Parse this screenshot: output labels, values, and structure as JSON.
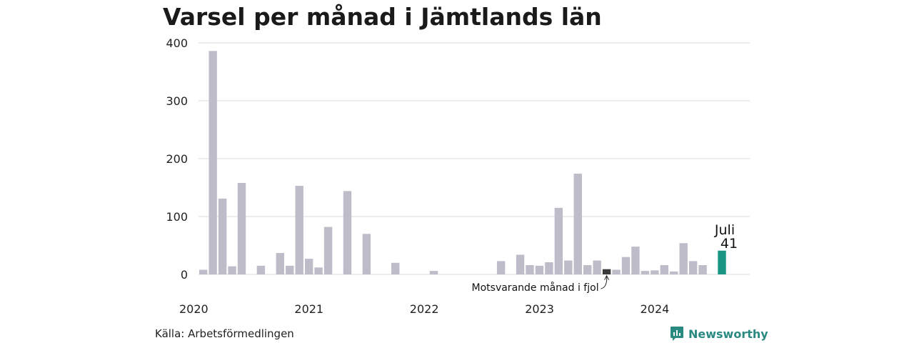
{
  "title": "Varsel per månad i Jämtlands län",
  "source": "Källa: Arbetsförmedlingen",
  "brand": "Newsworthy",
  "colors": {
    "bar": "#bfbcca",
    "prior_year": "#3a3a3a",
    "current": "#1a9484",
    "grid": "#e2e2e2",
    "brand": "#2a8a82"
  },
  "chart_data": {
    "type": "bar",
    "ylim": [
      0,
      400
    ],
    "yticks": [
      0,
      100,
      200,
      300,
      400
    ],
    "xticks": [
      "2020",
      "2021",
      "2022",
      "2023",
      "2024"
    ],
    "months": [
      "2020-01",
      "2020-02",
      "2020-03",
      "2020-04",
      "2020-05",
      "2020-06",
      "2020-07",
      "2020-08",
      "2020-09",
      "2020-10",
      "2020-11",
      "2020-12",
      "2021-01",
      "2021-02",
      "2021-03",
      "2021-04",
      "2021-05",
      "2021-06",
      "2021-07",
      "2021-08",
      "2021-09",
      "2021-10",
      "2021-11",
      "2021-12",
      "2022-01",
      "2022-02",
      "2022-03",
      "2022-04",
      "2022-05",
      "2022-06",
      "2022-07",
      "2022-08",
      "2022-09",
      "2022-10",
      "2022-11",
      "2022-12",
      "2023-01",
      "2023-02",
      "2023-03",
      "2023-04",
      "2023-05",
      "2023-06",
      "2023-07",
      "2023-08",
      "2023-09",
      "2023-10",
      "2023-11",
      "2023-12",
      "2024-01",
      "2024-02",
      "2024-03",
      "2024-04",
      "2024-05",
      "2024-06",
      "2024-07"
    ],
    "values": [
      8,
      386,
      131,
      14,
      158,
      0,
      15,
      0,
      37,
      15,
      153,
      27,
      12,
      82,
      0,
      144,
      0,
      70,
      0,
      0,
      20,
      0,
      0,
      0,
      6,
      0,
      0,
      0,
      0,
      0,
      0,
      23,
      0,
      34,
      16,
      15,
      21,
      115,
      24,
      174,
      16,
      24,
      9,
      8,
      30,
      48,
      6,
      7,
      16,
      5,
      54,
      23,
      16,
      0,
      41
    ],
    "highlight_prior_year_month": "2023-07",
    "highlight_current_month": "2024-07",
    "current_label": "Juli",
    "current_value_label": "41",
    "annotation": "Motsvarande månad i fjol"
  }
}
